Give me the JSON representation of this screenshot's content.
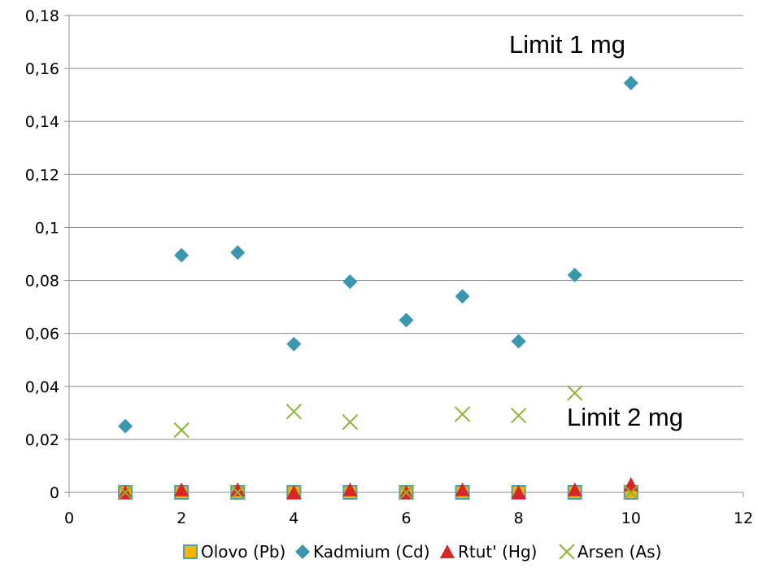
{
  "chart_data": {
    "type": "scatter",
    "xlim": [
      0,
      12
    ],
    "ylim": [
      0,
      0.18
    ],
    "x_ticks": [
      "0",
      "2",
      "4",
      "6",
      "8",
      "10",
      "12"
    ],
    "y_ticks": [
      "0",
      "0,02",
      "0,04",
      "0,06",
      "0,08",
      "0,1",
      "0,12",
      "0,14",
      "0,16",
      "0,18"
    ],
    "grid": true,
    "legend_position": "bottom",
    "series": [
      {
        "name": "Olovo (Pb)",
        "marker": "square",
        "color": "#f5b400",
        "edge_color": "#4aa3b5",
        "x": [
          1,
          2,
          3,
          4,
          5,
          6,
          7,
          8,
          9,
          10
        ],
        "y": [
          0,
          0,
          0,
          0,
          0,
          0,
          0,
          0,
          0,
          0
        ]
      },
      {
        "name": "Kadmium (Cd)",
        "marker": "diamond",
        "color": "#3a97ad",
        "x": [
          1,
          2,
          3,
          4,
          5,
          6,
          7,
          8,
          9,
          10
        ],
        "y": [
          0.025,
          0.0895,
          0.0905,
          0.056,
          0.0795,
          0.065,
          0.074,
          0.057,
          0.082,
          0.1545
        ]
      },
      {
        "name": "Rtut' (Hg)",
        "marker": "triangle",
        "color": "#d62727",
        "x": [
          1,
          2,
          3,
          4,
          5,
          6,
          7,
          8,
          9,
          10
        ],
        "y": [
          0.0,
          0.001,
          0.001,
          0.0,
          0.001,
          0.0,
          0.001,
          0.0,
          0.001,
          0.003
        ]
      },
      {
        "name": "Arsen (As)",
        "marker": "x",
        "color": "#8db33a",
        "x": [
          1,
          2,
          3,
          4,
          5,
          6,
          7,
          8,
          9,
          10
        ],
        "y": [
          0,
          0.0235,
          0,
          0.0305,
          0.0265,
          0,
          0.0295,
          0.029,
          0.0375,
          0
        ]
      }
    ],
    "annotations": [
      {
        "text": "Limit 1 mg"
      },
      {
        "text": "Limit 2 mg"
      }
    ]
  }
}
